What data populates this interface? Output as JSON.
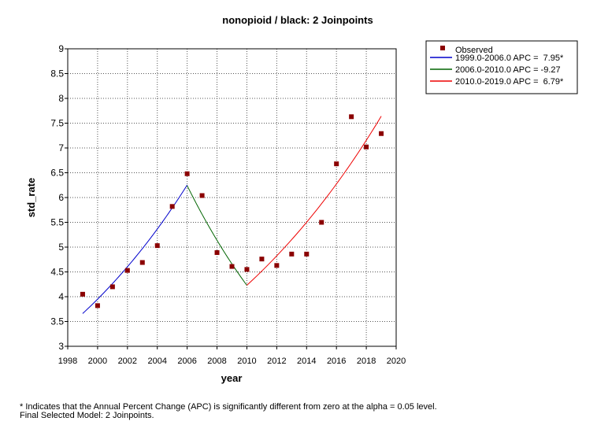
{
  "chart_data": {
    "type": "line",
    "title": "nonopioid / black: 2 Joinpoints",
    "xlabel": "year",
    "ylabel": "std_rate",
    "xlim": [
      1998,
      2020
    ],
    "ylim": [
      3,
      9
    ],
    "x_ticks": [
      "1998",
      "2000",
      "2002",
      "2004",
      "2006",
      "2008",
      "2010",
      "2012",
      "2014",
      "2016",
      "2018",
      "2020"
    ],
    "y_ticks": [
      "3",
      "3.5",
      "4",
      "4.5",
      "5",
      "5.5",
      "6",
      "6.5",
      "7",
      "7.5",
      "8",
      "8.5",
      "9"
    ],
    "grid": true,
    "legend_position": "top-right, outside plot",
    "observed": {
      "name": "Observed",
      "color": "#8b0000",
      "points": [
        {
          "x": 1999,
          "y": 4.05
        },
        {
          "x": 2000,
          "y": 3.82
        },
        {
          "x": 2001,
          "y": 4.2
        },
        {
          "x": 2002,
          "y": 4.53
        },
        {
          "x": 2003,
          "y": 4.69
        },
        {
          "x": 2004,
          "y": 5.03
        },
        {
          "x": 2005,
          "y": 5.82
        },
        {
          "x": 2006,
          "y": 6.48
        },
        {
          "x": 2007,
          "y": 6.04
        },
        {
          "x": 2008,
          "y": 4.89
        },
        {
          "x": 2009,
          "y": 4.61
        },
        {
          "x": 2010,
          "y": 4.55
        },
        {
          "x": 2011,
          "y": 4.76
        },
        {
          "x": 2012,
          "y": 4.63
        },
        {
          "x": 2013,
          "y": 4.86
        },
        {
          "x": 2014,
          "y": 4.86
        },
        {
          "x": 2015,
          "y": 5.5
        },
        {
          "x": 2016,
          "y": 6.68
        },
        {
          "x": 2017,
          "y": 7.63
        },
        {
          "x": 2018,
          "y": 7.02
        },
        {
          "x": 2019,
          "y": 7.29
        }
      ]
    },
    "segments": [
      {
        "name": "1999.0-2006.0 APC =  7.95*",
        "color": "#0000cc",
        "x_start": 1999,
        "x_end": 2006,
        "y_start": 3.66,
        "apc": 7.95
      },
      {
        "name": "2006.0-2010.0 APC = -9.27",
        "color": "#006400",
        "x_start": 2006,
        "x_end": 2010,
        "y_start": 6.24,
        "apc": -9.27
      },
      {
        "name": "2010.0-2019.0 APC =  6.79*",
        "color": "#ee0000",
        "x_start": 2010,
        "x_end": 2019,
        "y_start": 4.23,
        "apc": 6.79
      }
    ]
  },
  "footnotes": {
    "line1": "* Indicates that the Annual Percent Change (APC) is significantly different from zero at the alpha = 0.05 level.",
    "line2": "Final Selected Model: 2 Joinpoints."
  }
}
